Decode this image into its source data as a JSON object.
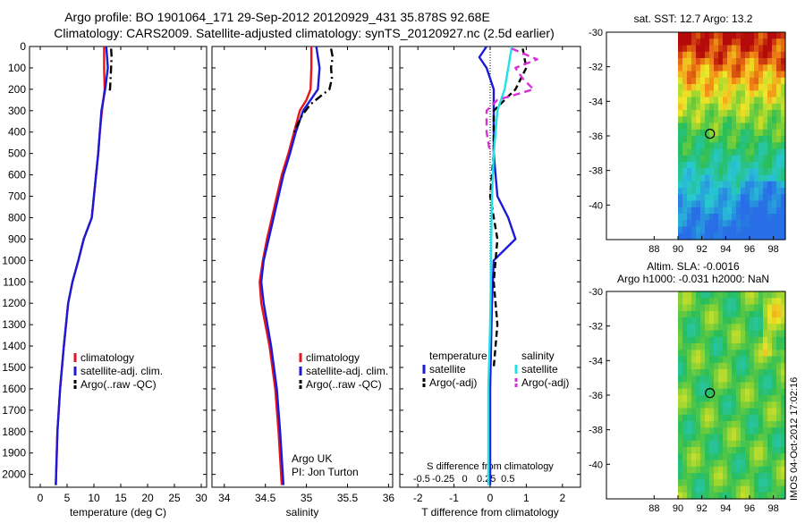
{
  "header": {
    "title_line1": "Argo profile: BO 1901064_171 29-Sep-2012 20120929_431 35.878S 92.68E",
    "title_line2": "Climatology: CARS2009. Satellite-adjusted climatology: synTS_20120927.nc (2.5d earlier)"
  },
  "colors": {
    "clim": "#e8141b",
    "sat": "#1a1ad8",
    "argo": "#000000",
    "sal_sat": "#22e0e8",
    "sal_argo": "#d830d8"
  },
  "depth_ticks": [
    "0",
    "100",
    "200",
    "300",
    "400",
    "500",
    "600",
    "700",
    "800",
    "900",
    "1000",
    "1100",
    "1200",
    "1300",
    "1400",
    "1500",
    "1600",
    "1700",
    "1800",
    "1900",
    "2000"
  ],
  "chart_data": [
    {
      "id": "temperature",
      "type": "line",
      "xlabel": "temperature (deg C)",
      "ylabel": "",
      "xlim": [
        -2,
        31
      ],
      "ylim": [
        2060,
        0
      ],
      "xticks": [
        "0",
        "5",
        "10",
        "15",
        "20",
        "25",
        "30"
      ],
      "legend": [
        "climatology",
        "satellite-adj. clim.",
        "Argo(..raw -QC)"
      ],
      "series": [
        {
          "name": "climatology",
          "depth": [
            0,
            100,
            200,
            300,
            400,
            500,
            600,
            700,
            800,
            900,
            1000,
            1100,
            1200,
            1400,
            1600,
            1800,
            2050
          ],
          "values": [
            11.9,
            11.9,
            12.0,
            11.5,
            11.1,
            10.8,
            10.4,
            10.0,
            9.6,
            8.1,
            7.1,
            6.0,
            5.2,
            4.4,
            3.7,
            3.2,
            2.9
          ]
        },
        {
          "name": "satellite-adj. clim.",
          "depth": [
            0,
            100,
            200,
            300,
            400,
            500,
            600,
            700,
            800,
            900,
            1000,
            1100,
            1200,
            1400,
            1600,
            1800,
            2050
          ],
          "values": [
            12.3,
            12.6,
            12.1,
            11.4,
            11.1,
            10.8,
            10.4,
            10.0,
            9.6,
            8.1,
            7.1,
            6.0,
            5.2,
            4.4,
            3.7,
            3.2,
            2.9
          ]
        },
        {
          "name": "Argo(..raw -QC)",
          "depth": [
            10,
            50,
            100,
            150,
            200,
            210
          ],
          "values": [
            13.2,
            13.3,
            13.2,
            13.1,
            13.0,
            12.7
          ]
        }
      ]
    },
    {
      "id": "salinity",
      "type": "line",
      "xlabel": "salinity",
      "xlim": [
        33.85,
        36.05
      ],
      "ylim": [
        2060,
        0
      ],
      "xticks": [
        "34",
        "34.5",
        "35",
        "35.5",
        "36"
      ],
      "legend": [
        "climatology",
        "satellite-adj. clim.",
        "Argo(..raw -QC)"
      ],
      "annotation": [
        "Argo UK",
        "PI: Jon Turton"
      ],
      "series": [
        {
          "name": "climatology",
          "depth": [
            0,
            100,
            200,
            250,
            300,
            400,
            500,
            600,
            700,
            800,
            900,
            1000,
            1100,
            1200,
            1400,
            1600,
            1800,
            2050
          ],
          "values": [
            35.06,
            35.06,
            35.05,
            35.0,
            34.92,
            34.85,
            34.78,
            34.7,
            34.64,
            34.58,
            34.52,
            34.47,
            34.43,
            34.45,
            34.55,
            34.62,
            34.66,
            34.7
          ]
        },
        {
          "name": "satellite-adj. clim.",
          "depth": [
            0,
            100,
            200,
            250,
            300,
            400,
            500,
            600,
            700,
            800,
            900,
            1000,
            1100,
            1200,
            1400,
            1600,
            1800,
            2050
          ],
          "values": [
            35.12,
            35.16,
            35.14,
            35.05,
            34.96,
            34.87,
            34.8,
            34.72,
            34.66,
            34.6,
            34.54,
            34.48,
            34.45,
            34.48,
            34.57,
            34.64,
            34.68,
            34.72
          ]
        },
        {
          "name": "Argo(..raw -QC)",
          "depth": [
            10,
            50,
            100,
            150,
            200,
            230,
            270,
            320,
            400
          ],
          "values": [
            35.3,
            35.32,
            35.3,
            35.31,
            35.28,
            35.18,
            35.05,
            34.95,
            34.85
          ]
        }
      ]
    },
    {
      "id": "difference",
      "type": "line",
      "xlabel": "T difference from climatology",
      "xlabel_top": "S difference from climatology",
      "xlim": [
        -2.5,
        2.5
      ],
      "ylim": [
        2060,
        0
      ],
      "xticks": [
        "-2",
        "-1",
        "0",
        "1",
        "2"
      ],
      "sticks": [
        "-0.5",
        "-0.25",
        "0",
        "0.25",
        "0.5"
      ],
      "legend_headers": [
        "temperature",
        "salinity"
      ],
      "legend": [
        "satellite",
        "Argo(-adj)",
        "satellite",
        "Argo(-adj)"
      ],
      "series": [
        {
          "name": "temperature satellite",
          "depth": [
            0,
            50,
            100,
            150,
            200,
            300,
            500,
            700,
            800,
            900,
            1000,
            1200,
            1600,
            2050
          ],
          "values": [
            -0.1,
            -0.3,
            -0.1,
            0.0,
            0.1,
            0.1,
            0.1,
            0.2,
            0.5,
            0.7,
            0.1,
            0.05,
            0.0,
            0.0
          ]
        },
        {
          "name": "temperature Argo(-adj)",
          "depth": [
            10,
            100,
            200,
            300,
            500,
            700,
            900,
            1100,
            1300,
            1500
          ],
          "values": [
            0.9,
            1.0,
            0.7,
            0.1,
            0.1,
            0.0,
            0.2,
            0.1,
            0.2,
            0.1
          ]
        },
        {
          "name": "salinity satellite",
          "depth": [
            0,
            100,
            200,
            300,
            500,
            700,
            900,
            1100,
            1300,
            1600,
            2050
          ],
          "values": [
            0.6,
            0.5,
            0.4,
            0.2,
            0.1,
            0.05,
            0.03,
            0.02,
            0.0,
            -0.05,
            -0.05
          ]
        },
        {
          "name": "salinity Argo(-adj)",
          "depth": [
            10,
            60,
            100,
            150,
            200,
            250,
            300,
            400,
            500
          ],
          "values": [
            0.6,
            1.3,
            0.7,
            0.9,
            1.2,
            0.2,
            -0.1,
            -0.1,
            0.0
          ]
        }
      ]
    },
    {
      "id": "sst_map",
      "type": "heatmap",
      "title": "sat. SST: 12.7 Argo: 13.2",
      "xlim": [
        84,
        99
      ],
      "ylim": [
        -42,
        -30
      ],
      "xticks": [
        "88",
        "90",
        "92",
        "94",
        "96",
        "98"
      ],
      "yticks": [
        "-30",
        "-32",
        "-34",
        "-36",
        "-38",
        "-40"
      ],
      "marker": {
        "lon": 92.68,
        "lat": -35.878
      }
    },
    {
      "id": "sla_map",
      "type": "heatmap",
      "title": "Altim. SLA: -0.0016",
      "subtitle": "Argo h1000: -0.031 h2000: NaN",
      "xlim": [
        84,
        99
      ],
      "ylim": [
        -42,
        -30
      ],
      "xticks": [
        "88",
        "90",
        "92",
        "94",
        "96",
        "98"
      ],
      "yticks": [
        "-30",
        "-32",
        "-34",
        "-36",
        "-38",
        "-40"
      ],
      "marker": {
        "lon": 92.68,
        "lat": -35.878
      }
    }
  ],
  "footer": {
    "credit": "IMOS 04-Oct-2012 17:02:16"
  }
}
